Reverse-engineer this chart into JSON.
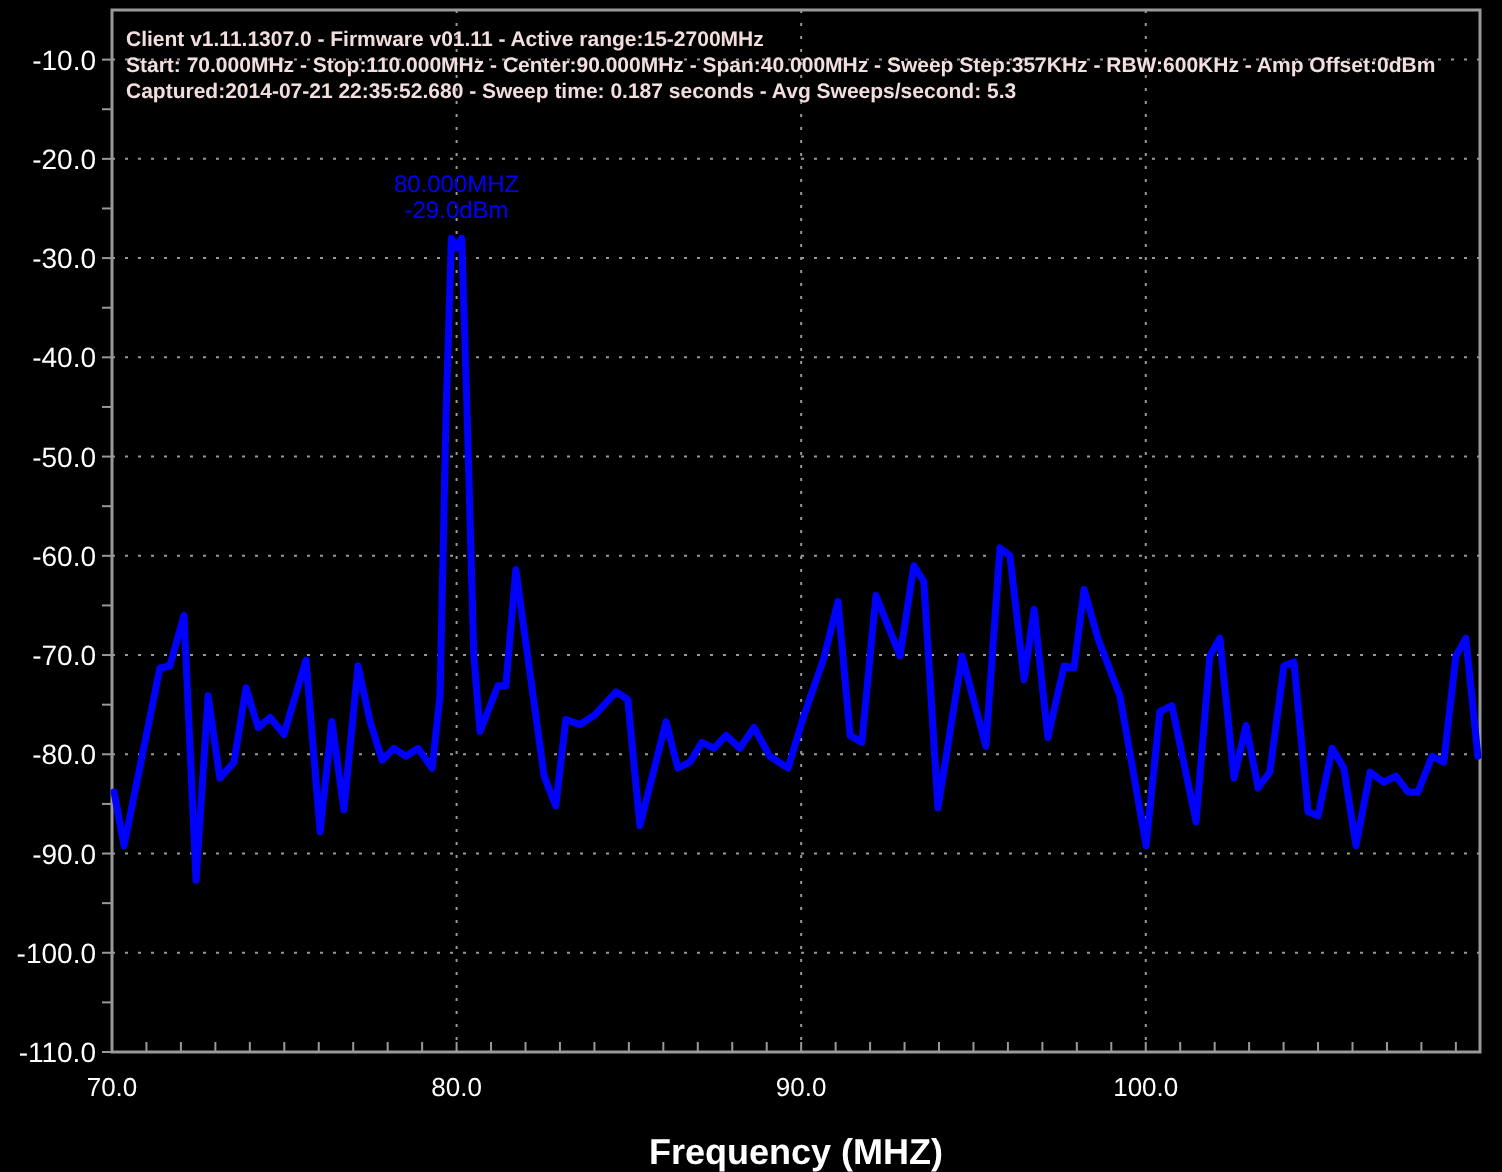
{
  "chart_data": {
    "type": "line",
    "xlabel": "Frequency (MHZ)",
    "annotations": [
      "Client v1.11.1307.0 - Firmware v01.11 - Active range:15-2700MHz",
      "Start: 70.000MHz - Stop:110.000MHz - Center:90.000MHz - Span:40.000MHz - Sweep Step:357KHz - RBW:600KHz - Amp Offset:0dBm",
      "Captured:2014-07-21 22:35:52.680 - Sweep time: 0.187 seconds - Avg Sweeps/second: 5.3",
      {
        "text": "80.000MHZ\n-29.0dBm",
        "x": 80,
        "y": -29
      }
    ],
    "xlim": [
      70,
      109.7
    ],
    "ylim": [
      -110,
      -5
    ],
    "xticks": [
      {
        "value": 70,
        "label": "70.0"
      },
      {
        "value": 71,
        "label": null
      },
      {
        "value": 72,
        "label": null
      },
      {
        "value": 73,
        "label": null
      },
      {
        "value": 74,
        "label": null
      },
      {
        "value": 75,
        "label": null
      },
      {
        "value": 76,
        "label": null
      },
      {
        "value": 77,
        "label": null
      },
      {
        "value": 78,
        "label": null
      },
      {
        "value": 79,
        "label": null
      },
      {
        "value": 80,
        "label": "80.0"
      },
      {
        "value": 81,
        "label": null
      },
      {
        "value": 82,
        "label": null
      },
      {
        "value": 83,
        "label": null
      },
      {
        "value": 84,
        "label": null
      },
      {
        "value": 85,
        "label": null
      },
      {
        "value": 86,
        "label": null
      },
      {
        "value": 87,
        "label": null
      },
      {
        "value": 88,
        "label": null
      },
      {
        "value": 89,
        "label": null
      },
      {
        "value": 90,
        "label": "90.0"
      },
      {
        "value": 91,
        "label": null
      },
      {
        "value": 92,
        "label": null
      },
      {
        "value": 93,
        "label": null
      },
      {
        "value": 94,
        "label": null
      },
      {
        "value": 95,
        "label": null
      },
      {
        "value": 96,
        "label": null
      },
      {
        "value": 97,
        "label": null
      },
      {
        "value": 98,
        "label": null
      },
      {
        "value": 99,
        "label": null
      },
      {
        "value": 100,
        "label": "100.0"
      },
      {
        "value": 101,
        "label": null
      },
      {
        "value": 102,
        "label": null
      },
      {
        "value": 103,
        "label": null
      },
      {
        "value": 104,
        "label": null
      },
      {
        "value": 105,
        "label": null
      },
      {
        "value": 106,
        "label": null
      },
      {
        "value": 107,
        "label": null
      },
      {
        "value": 108,
        "label": null
      },
      {
        "value": 109,
        "label": null
      }
    ],
    "yticks": [
      {
        "value": -10,
        "label": "-10.0"
      },
      {
        "value": -15,
        "label": null
      },
      {
        "value": -20,
        "label": "-20.0"
      },
      {
        "value": -25,
        "label": null
      },
      {
        "value": -30,
        "label": "-30.0"
      },
      {
        "value": -35,
        "label": null
      },
      {
        "value": -40,
        "label": "-40.0"
      },
      {
        "value": -45,
        "label": null
      },
      {
        "value": -50,
        "label": "-50.0"
      },
      {
        "value": -55,
        "label": null
      },
      {
        "value": -60,
        "label": "-60.0"
      },
      {
        "value": -65,
        "label": null
      },
      {
        "value": -70,
        "label": "-70.0"
      },
      {
        "value": -75,
        "label": null
      },
      {
        "value": -80,
        "label": "-80.0"
      },
      {
        "value": -85,
        "label": null
      },
      {
        "value": -90,
        "label": "-90.0"
      },
      {
        "value": -95,
        "label": null
      },
      {
        "value": -100,
        "label": "-100.0"
      },
      {
        "value": -105,
        "label": null
      },
      {
        "value": -110,
        "label": "-110.0"
      }
    ],
    "grid": true,
    "line_style": "solid",
    "marker": "none",
    "series": [
      {
        "color": "#0000ff",
        "x": [
          70.06,
          70.35,
          71.39,
          71.68,
          72.09,
          72.44,
          72.79,
          73.13,
          73.54,
          73.89,
          74.24,
          74.59,
          74.99,
          75.63,
          76.04,
          76.38,
          76.73,
          77.14,
          77.49,
          77.84,
          78.18,
          78.53,
          78.88,
          79.29,
          79.52,
          79.7,
          79.85,
          80.0,
          80.15,
          80.3,
          80.5,
          80.68,
          81.2,
          81.43,
          81.72,
          82.54,
          82.88,
          83.17,
          83.58,
          83.99,
          84.63,
          84.97,
          85.32,
          86.08,
          86.42,
          86.77,
          87.12,
          87.47,
          87.82,
          88.22,
          88.63,
          89.09,
          89.62,
          90.08,
          90.66,
          91.07,
          91.42,
          91.76,
          92.17,
          92.87,
          93.27,
          93.56,
          93.97,
          94.67,
          95.36,
          95.77,
          96.06,
          96.47,
          96.76,
          97.16,
          97.63,
          97.92,
          98.21,
          98.61,
          99.25,
          100.01,
          100.41,
          100.76,
          101.46,
          101.86,
          102.15,
          102.56,
          102.91,
          103.26,
          103.6,
          104.01,
          104.3,
          104.71,
          105.0,
          105.41,
          105.75,
          106.1,
          106.51,
          106.91,
          107.26,
          107.61,
          107.9,
          108.31,
          108.65,
          109.0,
          109.29,
          109.64
        ],
        "values": [
          -83.8,
          -89.2,
          -71.3,
          -71.1,
          -66,
          -92.7,
          -74.1,
          -82.4,
          -80.8,
          -73.3,
          -77.3,
          -76.3,
          -78,
          -70.5,
          -87.8,
          -76.7,
          -85.6,
          -71.1,
          -76.7,
          -80.6,
          -79.4,
          -80.2,
          -79.4,
          -81.4,
          -74.1,
          -45,
          -28,
          -29,
          -28,
          -45,
          -70,
          -77.7,
          -73.1,
          -73.1,
          -61.4,
          -82.2,
          -85.2,
          -76.5,
          -77,
          -76.1,
          -73.7,
          -74.5,
          -87.2,
          -76.7,
          -81.4,
          -80.8,
          -78.8,
          -79.4,
          -78.1,
          -79.4,
          -77.3,
          -80.2,
          -81.4,
          -76.1,
          -70.3,
          -64.6,
          -78.1,
          -78.8,
          -64,
          -70.1,
          -61,
          -62.6,
          -85.4,
          -70.1,
          -79.2,
          -59.2,
          -60,
          -72.5,
          -65.4,
          -78.3,
          -71.1,
          -71.3,
          -63.4,
          -68.3,
          -74.1,
          -89.2,
          -75.7,
          -75.1,
          -86.8,
          -70.1,
          -68.3,
          -82.4,
          -77.1,
          -83.4,
          -81.8,
          -71.1,
          -70.7,
          -85.8,
          -86.2,
          -79.4,
          -81.4,
          -89.2,
          -81.8,
          -82.8,
          -82.2,
          -83.8,
          -83.8,
          -80.2,
          -80.8,
          -70.1,
          -68.3,
          -80.2
        ]
      }
    ]
  }
}
